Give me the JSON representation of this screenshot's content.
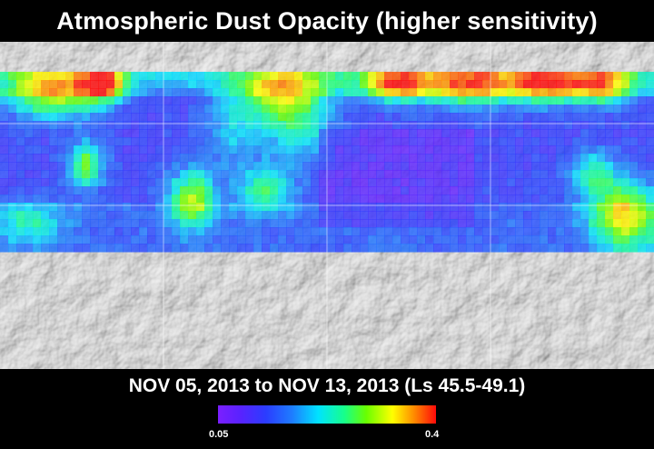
{
  "title": "Atmospheric Dust Opacity (higher sensitivity)",
  "date_range": "NOV 05, 2013 to NOV 13, 2013 (Ls 45.5-49.1)",
  "colorbar": {
    "min_label": "0.05",
    "max_label": "0.4",
    "colors": [
      "#7b1fff",
      "#5a22ff",
      "#2b3cff",
      "#1e7dff",
      "#00e3ff",
      "#17ff8a",
      "#69ff00",
      "#ffff00",
      "#ff8a00",
      "#ff0a0a"
    ]
  },
  "map": {
    "basemap": "grayscale-shaded-relief",
    "gridline_color": "#ffffff"
  }
}
